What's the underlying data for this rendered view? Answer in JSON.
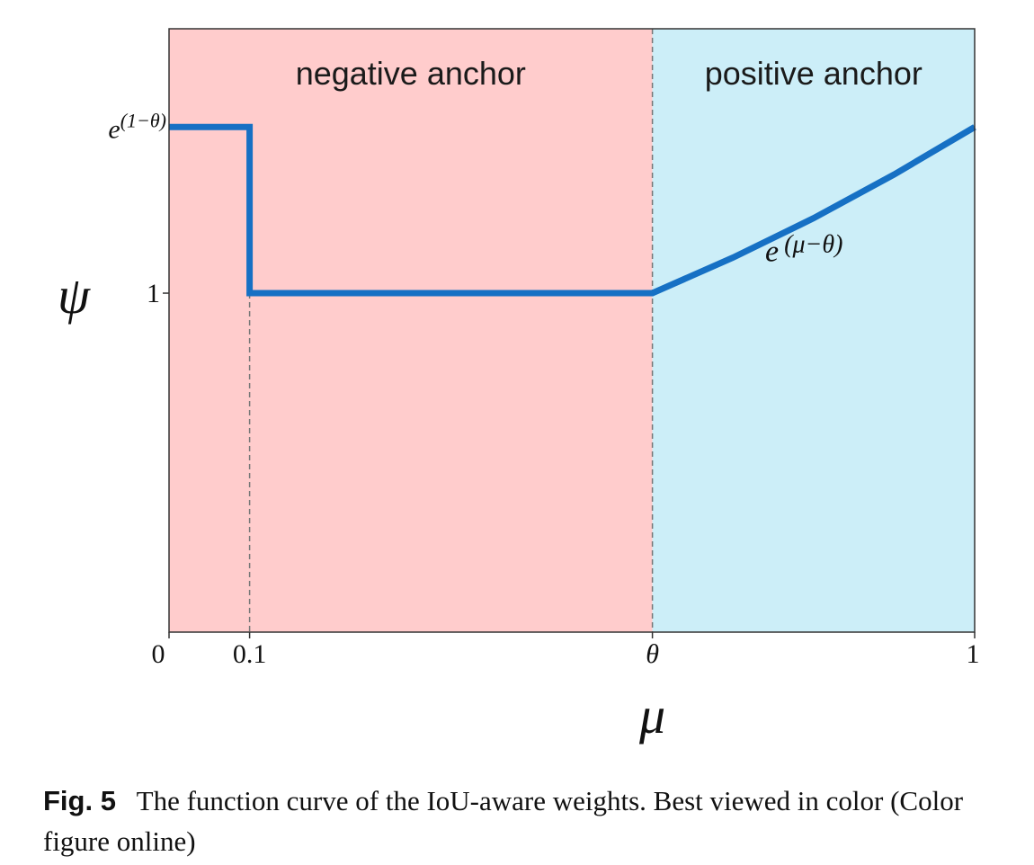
{
  "chart_data": {
    "type": "line",
    "xlabel": "μ",
    "ylabel": "ψ",
    "xlim": [
      0,
      1
    ],
    "theta": 0.6,
    "x_ticks": [
      {
        "value": 0,
        "label": "0"
      },
      {
        "value": 0.1,
        "label": "0.1"
      },
      {
        "value": 0.6,
        "label": "θ"
      },
      {
        "value": 1,
        "label": "1"
      }
    ],
    "y_ticks": [
      {
        "value": 1,
        "label": "1"
      }
    ],
    "y_top_label": {
      "base": "e",
      "exponent": "(1−θ)"
    },
    "regions": [
      {
        "name": "negative anchor",
        "x_start": 0,
        "x_end": 0.6,
        "color": "#ffcccc"
      },
      {
        "name": "positive anchor",
        "x_start": 0.6,
        "x_end": 1,
        "color": "#cceef8"
      }
    ],
    "series": [
      {
        "color": "#1670c4",
        "points": [
          [
            0,
            1.49
          ],
          [
            0.1,
            1.49
          ],
          [
            0.1,
            1
          ],
          [
            0.6,
            1
          ],
          [
            0.7,
            1.105
          ],
          [
            0.8,
            1.221
          ],
          [
            0.9,
            1.35
          ],
          [
            1,
            1.49
          ]
        ]
      }
    ],
    "curve_annotation": {
      "base": "e",
      "exponent": "(μ−θ)"
    },
    "ylim": [
      0,
      1.78
    ],
    "grid": false
  },
  "caption": {
    "label": "Fig. 5",
    "text": "The function curve of the IoU-aware weights. Best viewed in color (Color figure online)"
  }
}
